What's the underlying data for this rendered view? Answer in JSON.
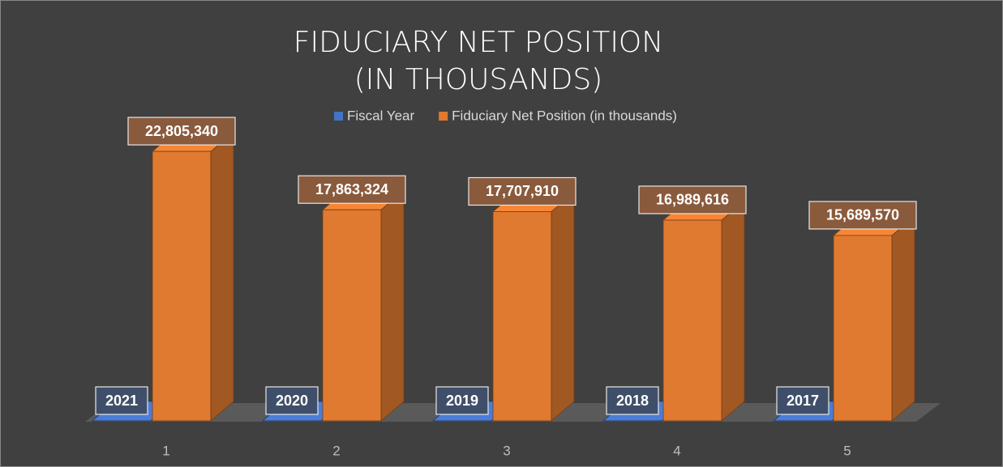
{
  "chart_data": {
    "type": "bar3d",
    "title": "FIDUCIARY NET POSITION (IN THOUSANDS)",
    "categories": [
      "1",
      "2",
      "3",
      "4",
      "5"
    ],
    "series": [
      {
        "name": "Fiscal Year",
        "color": "#4472c4",
        "values": [
          2021,
          2020,
          2019,
          2018,
          2017
        ]
      },
      {
        "name": "Fiduciary Net Position (in thousands)",
        "color": "#e07a30",
        "values": [
          22805340,
          17863324,
          17707910,
          16989616,
          15689570
        ],
        "value_labels": [
          "22,805,340",
          "17,863,324",
          "17,707,910",
          "16,989,616",
          "15,689,570"
        ]
      }
    ],
    "ylim": [
      0,
      25000000
    ],
    "legend": "top"
  }
}
